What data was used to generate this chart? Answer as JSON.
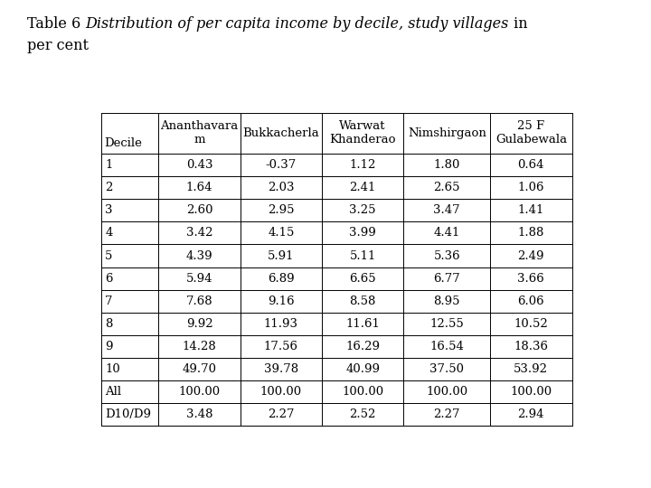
{
  "title_normal_part1": "Table 6 ",
  "title_italic_part": "Distribution of per capita income by decile, study villages",
  "title_normal_part2": " in",
  "title_line2": "per cent",
  "col_headers": [
    [
      "Decile",
      ""
    ],
    [
      "Ananthavara",
      "m"
    ],
    [
      "Bukkacherla",
      ""
    ],
    [
      "Warwat",
      "Khanderao"
    ],
    [
      "Nimshirgaon",
      ""
    ],
    [
      "25 F",
      "Gulabewala"
    ]
  ],
  "rows": [
    [
      "1",
      "0.43",
      "-0.37",
      "1.12",
      "1.80",
      "0.64"
    ],
    [
      "2",
      "1.64",
      "2.03",
      "2.41",
      "2.65",
      "1.06"
    ],
    [
      "3",
      "2.60",
      "2.95",
      "3.25",
      "3.47",
      "1.41"
    ],
    [
      "4",
      "3.42",
      "4.15",
      "3.99",
      "4.41",
      "1.88"
    ],
    [
      "5",
      "4.39",
      "5.91",
      "5.11",
      "5.36",
      "2.49"
    ],
    [
      "6",
      "5.94",
      "6.89",
      "6.65",
      "6.77",
      "3.66"
    ],
    [
      "7",
      "7.68",
      "9.16",
      "8.58",
      "8.95",
      "6.06"
    ],
    [
      "8",
      "9.92",
      "11.93",
      "11.61",
      "12.55",
      "10.52"
    ],
    [
      "9",
      "14.28",
      "17.56",
      "16.29",
      "16.54",
      "18.36"
    ],
    [
      "10",
      "49.70",
      "39.78",
      "40.99",
      "37.50",
      "53.92"
    ],
    [
      "All",
      "100.00",
      "100.00",
      "100.00",
      "100.00",
      "100.00"
    ],
    [
      "D10/D9",
      "3.48",
      "2.27",
      "2.52",
      "2.27",
      "2.94"
    ]
  ],
  "bg_color": "#ffffff",
  "text_color": "#000000",
  "font_size": 9.5,
  "header_font_size": 9.5,
  "title_font_size": 11.5
}
